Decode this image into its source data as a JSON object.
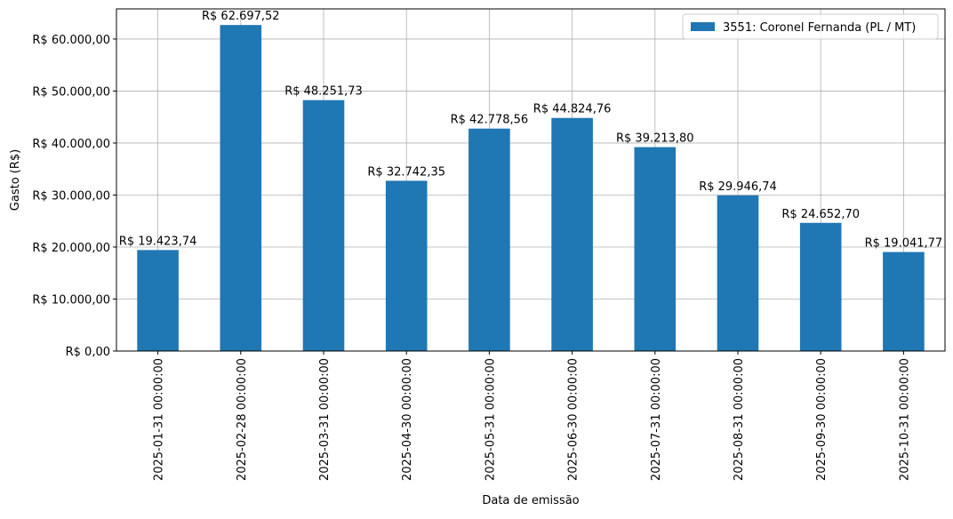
{
  "chart_data": {
    "type": "bar",
    "xlabel": "Data de emissão",
    "ylabel": "Gasto (R$)",
    "categories": [
      "2025-01-31 00:00:00",
      "2025-02-28 00:00:00",
      "2025-03-31 00:00:00",
      "2025-04-30 00:00:00",
      "2025-05-31 00:00:00",
      "2025-06-30 00:00:00",
      "2025-07-31 00:00:00",
      "2025-08-31 00:00:00",
      "2025-09-30 00:00:00",
      "2025-10-31 00:00:00"
    ],
    "series": [
      {
        "name": "3551: Coronel Fernanda (PL / MT)",
        "color": "#1f77b4",
        "values": [
          19423.74,
          62697.52,
          48251.73,
          32742.35,
          42778.56,
          44824.76,
          39213.8,
          29946.74,
          24652.7,
          19041.77
        ]
      }
    ],
    "data_labels": [
      "R$ 19.423,74",
      "R$ 62.697,52",
      "R$ 48.251,73",
      "R$ 32.742,35",
      "R$ 42.778,56",
      "R$ 44.824,76",
      "R$ 39.213,80",
      "R$ 29.946,74",
      "R$ 24.652,70",
      "R$ 19.041,77"
    ],
    "yticks": [
      0,
      10000,
      20000,
      30000,
      40000,
      50000,
      60000
    ],
    "ytick_labels": [
      "R$ 0,00",
      "R$ 10.000,00",
      "R$ 20.000,00",
      "R$ 30.000,00",
      "R$ 40.000,00",
      "R$ 50.000,00",
      "R$ 60.000,00"
    ],
    "ylim": [
      0,
      65800
    ],
    "grid": true,
    "legend_position": "top-right"
  }
}
